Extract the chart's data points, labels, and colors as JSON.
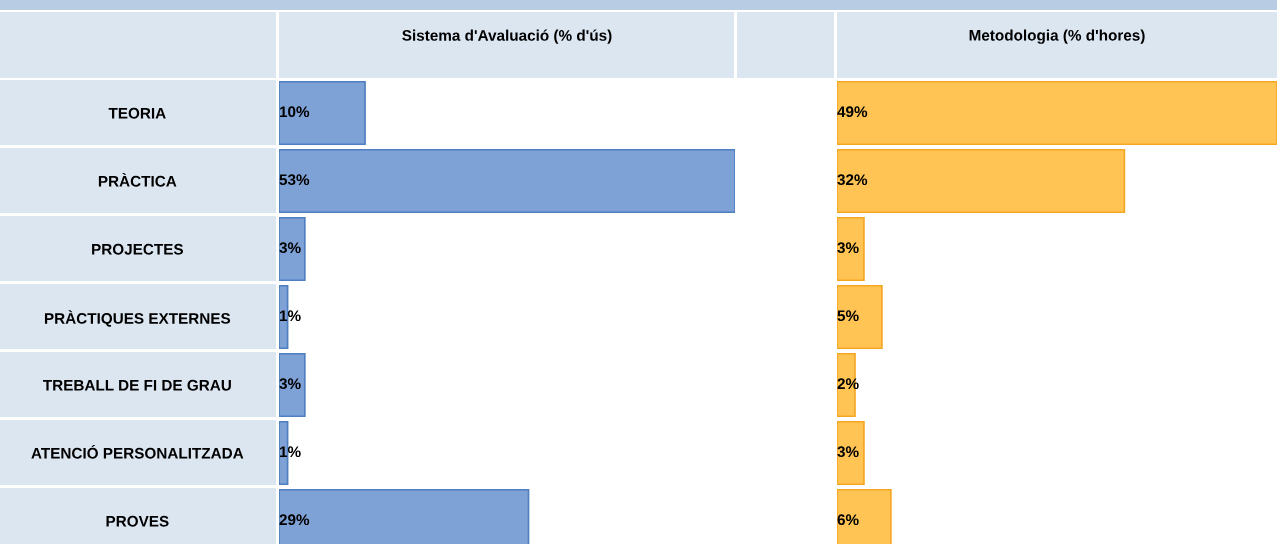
{
  "chart_data": [
    {
      "type": "bar",
      "orientation": "horizontal",
      "title": "Sistema d'Avaluació (% d'ús)",
      "categories": [
        "TEORIA",
        "PRÀCTICA",
        "PROJECTES",
        "PRÀCTIQUES EXTERNES",
        "TREBALL DE FI DE GRAU",
        "ATENCIÓ PERSONALITZADA",
        "PROVES"
      ],
      "values": [
        10,
        53,
        3,
        1,
        3,
        1,
        29
      ],
      "value_labels": [
        "10%",
        "53%",
        "3%",
        "1%",
        "3%",
        "1%",
        "29%"
      ],
      "color": "#7fa2d6",
      "tick_labels": "y"
    },
    {
      "type": "bar",
      "orientation": "horizontal",
      "title": "Metodologia (% d'hores)",
      "categories": [
        null,
        null,
        null,
        null,
        null,
        null,
        null
      ],
      "values": [
        49,
        32,
        3,
        5,
        2,
        3,
        6
      ],
      "value_labels": [
        "49%",
        "32%",
        "3%",
        "5%",
        "2%",
        "3%",
        "6%"
      ],
      "color": "#ffc453",
      "tick_labels": false
    }
  ]
}
